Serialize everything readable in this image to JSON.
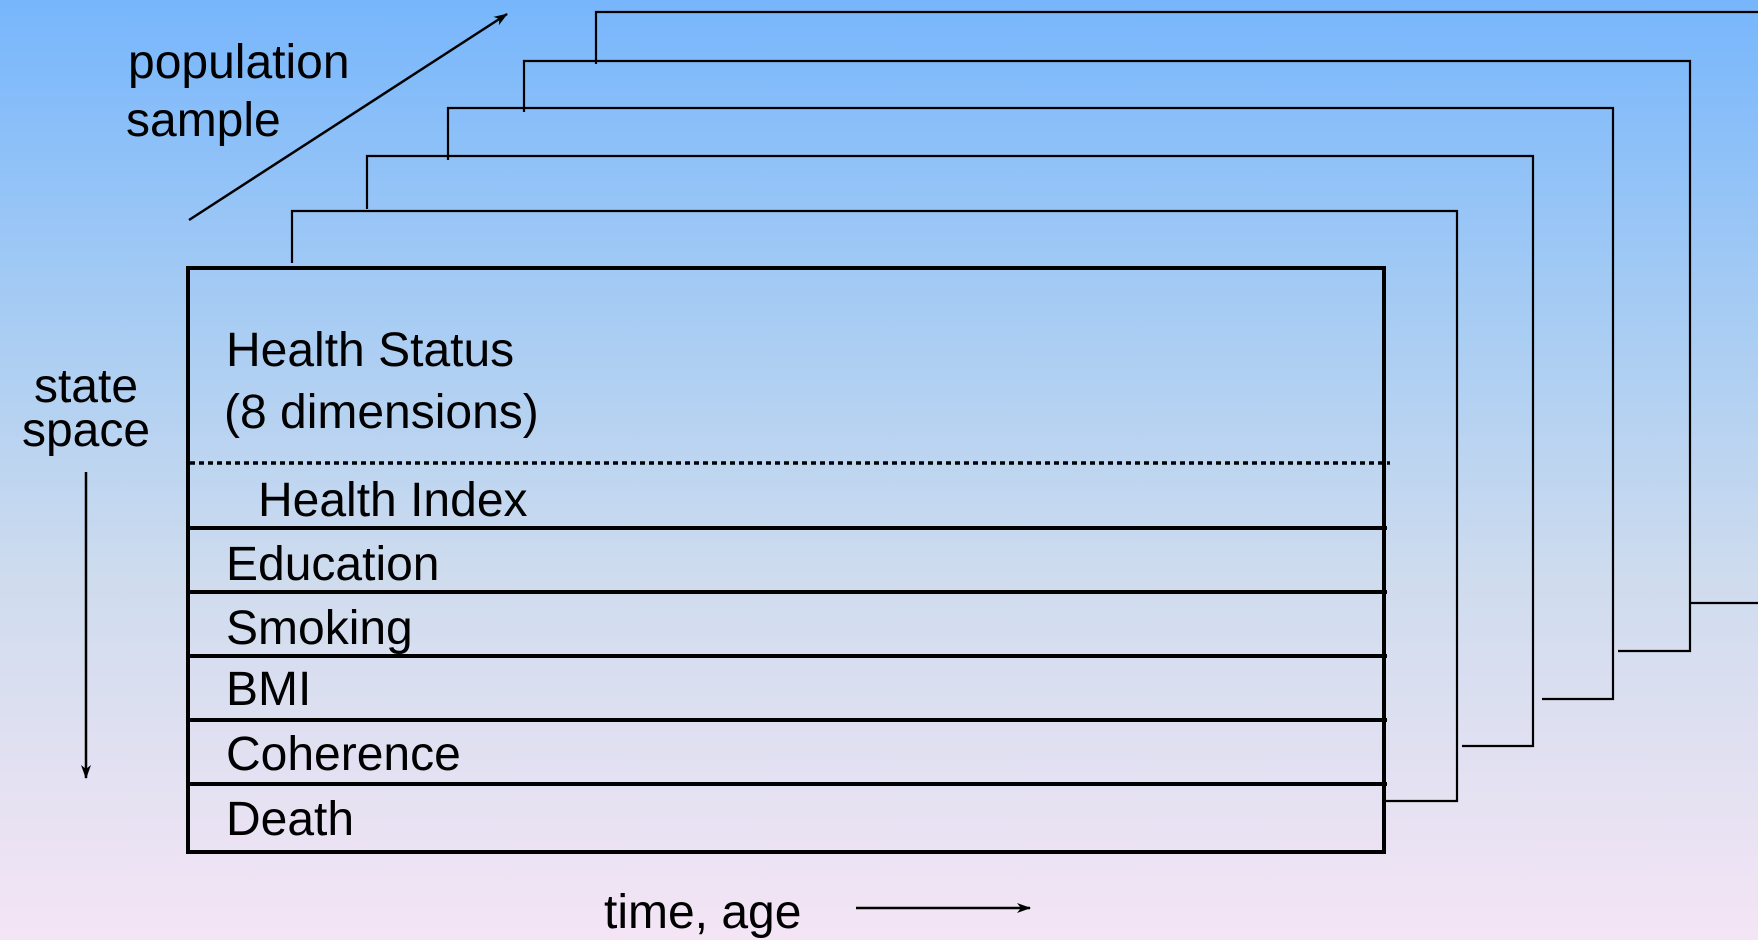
{
  "labels": {
    "population_sample_line1": "population",
    "population_sample_line2": "sample",
    "state_space_line1": "state",
    "state_space_line2": "space",
    "time_age": "time, age"
  },
  "front_panel": {
    "health_status_line1": "Health Status",
    "health_status_line2": "(8 dimensions)",
    "rows": [
      "Health Index",
      "Education",
      "Smoking",
      "BMI",
      "Coherence",
      "Death"
    ]
  },
  "colors": {
    "background_top": "#77b6fc",
    "background_bottom": "#f4e5f5",
    "stroke": "#000000"
  }
}
